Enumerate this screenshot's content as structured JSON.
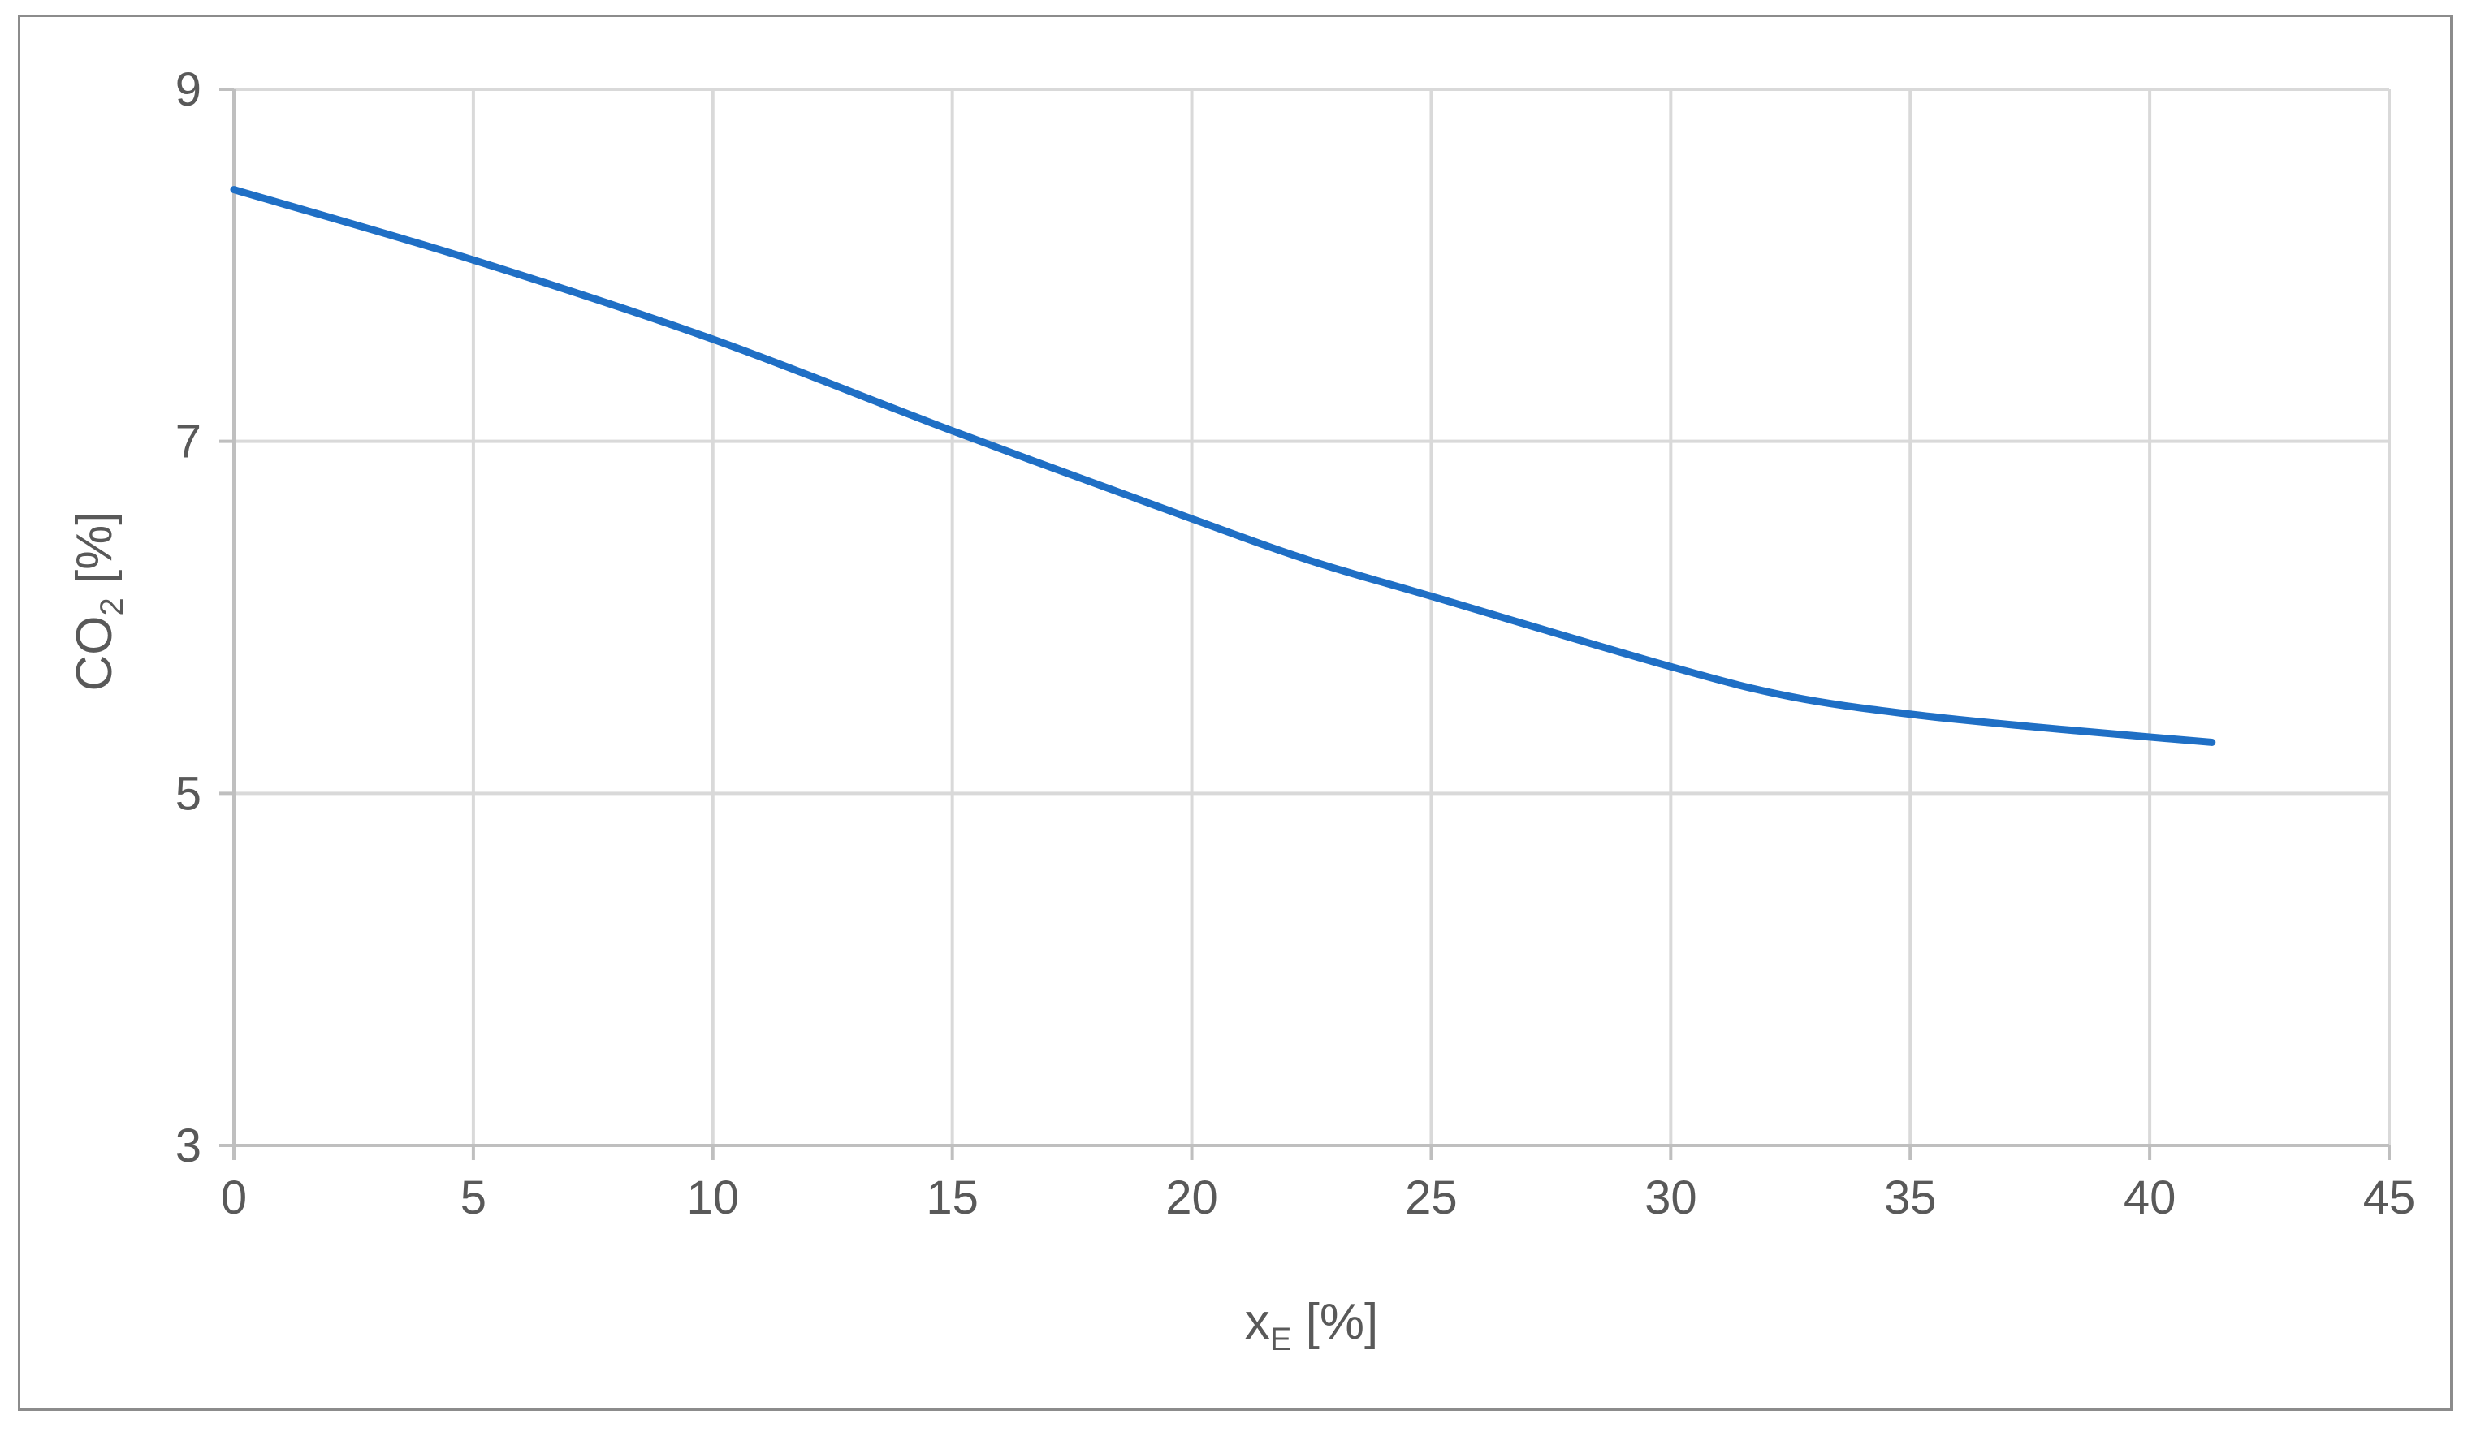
{
  "chart_data": {
    "type": "line",
    "title": "",
    "xlabel": {
      "main": "x",
      "sub": "E",
      "suffix": " [%]"
    },
    "ylabel": {
      "main": "CO",
      "sub": "2",
      "suffix": " [%]"
    },
    "xlim": [
      0,
      45
    ],
    "ylim": [
      3,
      9
    ],
    "xticks": [
      0,
      5,
      10,
      15,
      20,
      25,
      30,
      35,
      40,
      45
    ],
    "yticks": [
      3,
      5,
      7,
      9
    ],
    "grid": true,
    "legend": "none",
    "series": [
      {
        "color": "#1f6fc5",
        "x": [
          0,
          5,
          10,
          15,
          20,
          22.5,
          25,
          30,
          32.5,
          35,
          37.5,
          40,
          41.3
        ],
        "y": [
          8.43,
          8.03,
          7.58,
          7.06,
          6.56,
          6.32,
          6.12,
          5.72,
          5.55,
          5.45,
          5.38,
          5.32,
          5.29
        ]
      }
    ]
  }
}
